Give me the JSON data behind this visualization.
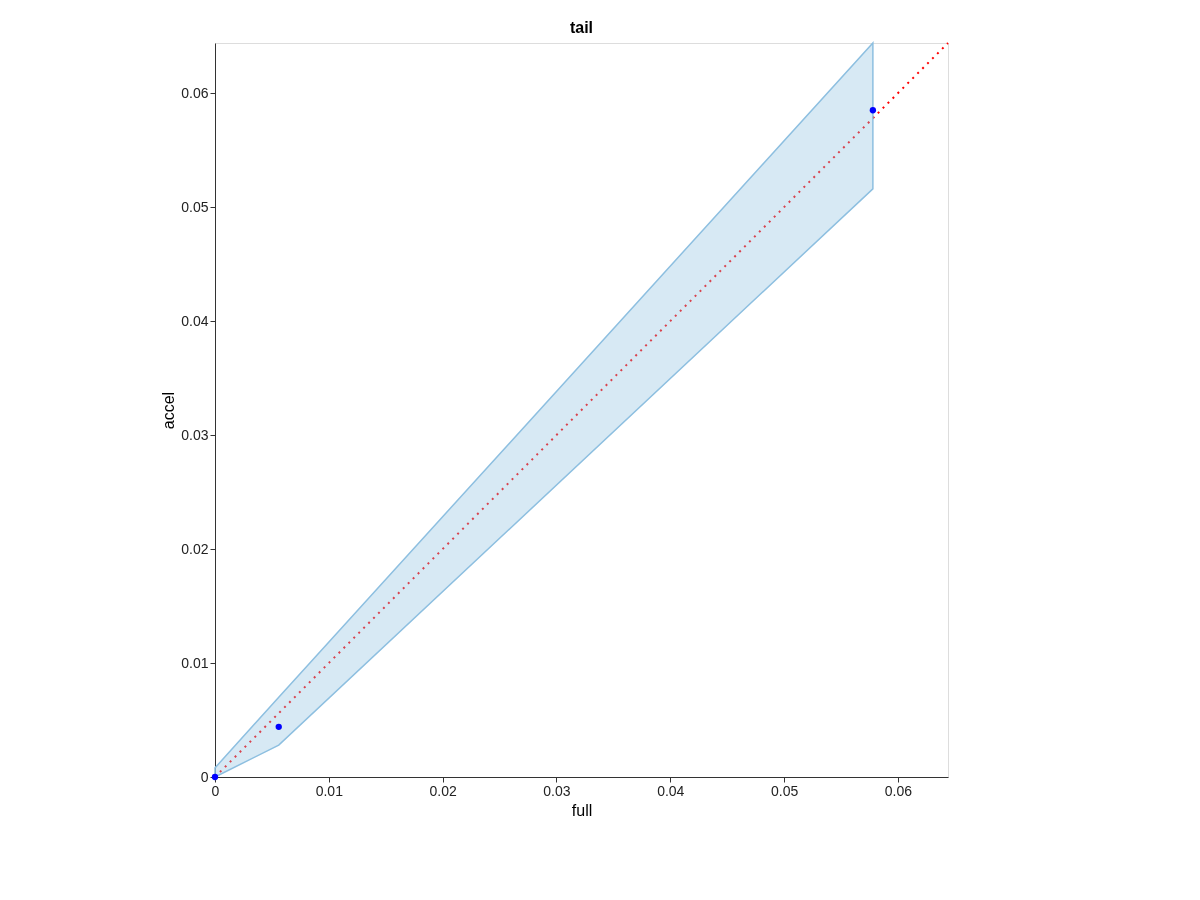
{
  "chart_data": {
    "type": "scatter",
    "title": "tail",
    "xlabel": "full",
    "ylabel": "accel",
    "xlim": [
      0,
      0.0644
    ],
    "ylim": [
      0,
      0.0644
    ],
    "xticks": [
      0,
      0.01,
      0.02,
      0.03,
      0.04,
      0.05,
      0.06
    ],
    "yticks": [
      0,
      0.01,
      0.02,
      0.03,
      0.04,
      0.05,
      0.06
    ],
    "grid": false,
    "series": [
      {
        "type": "line",
        "color": "#ff0000",
        "line_style": "dotted",
        "marker": "none",
        "x": [
          0,
          0.0644
        ],
        "values": [
          0,
          0.0644
        ]
      },
      {
        "color": "#0000ff",
        "marker": "circle",
        "x": [
          0,
          0.0056,
          0.0578
        ],
        "values": [
          0,
          0.0044,
          0.0585
        ],
        "lower": [
          0,
          0.0028,
          0.0516
        ],
        "upper": [
          0.0008,
          0.007,
          0.0644
        ]
      }
    ]
  }
}
